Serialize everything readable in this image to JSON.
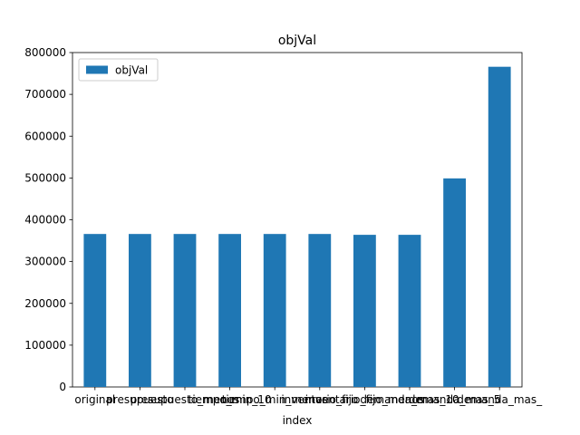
{
  "chart_data": {
    "type": "bar",
    "title": "objVal",
    "xlabel": "index",
    "ylabel": "",
    "categories": [
      "original",
      "presupuesto",
      "presupuesto_menos",
      "tiempo_min_10",
      "tiempo_min_menos",
      "inventario_fijo",
      "inventario_fijo_menos",
      "demanda_mas_10",
      "demanda_mas_5",
      "demanda_mas_"
    ],
    "series": [
      {
        "name": "objVal",
        "color": "#1f77b4",
        "values": [
          366000,
          366000,
          366000,
          366000,
          366000,
          366000,
          364000,
          364000,
          499000,
          766000
        ]
      }
    ],
    "ylim": [
      0,
      800000
    ],
    "yticks": [
      0,
      100000,
      200000,
      300000,
      400000,
      500000,
      600000,
      700000,
      800000
    ],
    "grid": false,
    "legend": {
      "placement": "upper left",
      "entries": [
        "objVal"
      ]
    }
  }
}
